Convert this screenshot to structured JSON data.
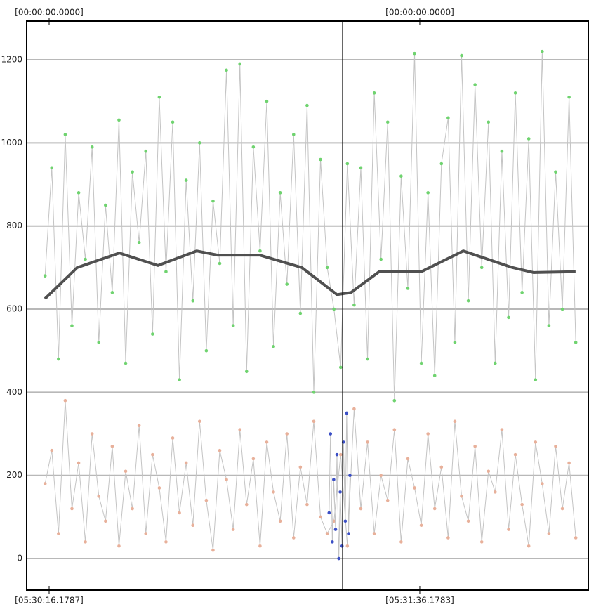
{
  "chart_data": {
    "type": "line",
    "ylim": [
      -76,
      1293
    ],
    "yticks": [
      0,
      200,
      400,
      600,
      800,
      1000,
      1200
    ],
    "xlim": [
      11.33,
      132.7
    ],
    "xticks": [
      {
        "value": 16.1787,
        "label": "[05:30:16.1787]"
      },
      {
        "value": 96.1783,
        "label": "[05:31:36.1783]"
      }
    ],
    "top_labels": [
      "[00:00:00.0000]",
      "[00:00:00.0000]"
    ],
    "cursor_x": 79.51,
    "grid": true,
    "x": [
      15.3,
      16.75,
      18.2,
      19.65,
      21.1,
      22.55,
      24,
      25.45,
      26.9,
      28.35,
      29.8,
      31.25,
      32.7,
      34.15,
      35.6,
      37.05,
      38.5,
      39.95,
      41.4,
      42.85,
      44.3,
      45.75,
      47.2,
      48.65,
      50.1,
      51.55,
      53,
      54.45,
      55.9,
      57.35,
      58.8,
      60.25,
      61.7,
      63.15,
      64.6,
      66.05,
      67.5,
      68.95,
      70.4,
      71.85,
      73.3,
      74.75,
      76.2,
      77.65,
      79.1,
      80.55,
      82,
      83.45,
      84.9,
      86.35,
      87.8,
      89.25,
      90.7,
      92.15,
      93.6,
      95.05,
      96.5,
      97.95,
      99.4,
      100.85,
      102.3,
      103.75,
      105.2,
      106.65,
      108.1,
      109.55,
      111,
      112.45,
      113.9,
      115.35,
      116.8,
      118.25,
      119.7,
      121.15,
      122.6,
      124.05,
      125.5,
      126.95,
      128.4,
      129.85
    ],
    "series": [
      {
        "color": "#6fd36f",
        "line_color": "#c4c4c4",
        "marker": true,
        "values": [
          680,
          940,
          480,
          1020,
          560,
          880,
          720,
          990,
          520,
          850,
          640,
          1055,
          470,
          930,
          760,
          980,
          540,
          1110,
          690,
          1050,
          430,
          910,
          620,
          1000,
          500,
          860,
          710,
          1175,
          560,
          1190,
          450,
          990,
          740,
          1100,
          510,
          880,
          660,
          1020,
          590,
          1090,
          400,
          960,
          700,
          600,
          460,
          950,
          610,
          940,
          480,
          1120,
          720,
          1050,
          380,
          920,
          650,
          1215,
          470,
          880,
          440,
          950,
          1060,
          520,
          1210,
          620,
          1140,
          700,
          1050,
          470,
          980,
          580,
          1120,
          640,
          1010,
          430,
          1220,
          560,
          930,
          600,
          1110,
          520
        ]
      },
      {
        "color": "#e8b09a",
        "line_color": "#c4c4c4",
        "marker": true,
        "values": [
          180,
          260,
          60,
          380,
          120,
          230,
          40,
          300,
          150,
          90,
          270,
          30,
          210,
          120,
          320,
          60,
          250,
          170,
          40,
          290,
          110,
          230,
          80,
          330,
          140,
          20,
          260,
          190,
          70,
          310,
          130,
          240,
          30,
          280,
          160,
          90,
          300,
          50,
          220,
          130,
          330,
          100,
          60,
          90,
          250,
          30,
          360,
          120,
          280,
          60,
          200,
          140,
          310,
          40,
          240,
          170,
          80,
          300,
          120,
          220,
          50,
          330,
          150,
          90,
          270,
          40,
          210,
          160,
          310,
          70,
          250,
          130,
          30,
          280,
          180,
          60,
          270,
          120,
          230,
          50
        ]
      },
      {
        "color": "#3b4fc6",
        "line_color": "#c4c4c4",
        "marker": true,
        "x": [
          76.6,
          76.9,
          77.3,
          77.6,
          78,
          78.3,
          78.7,
          79,
          79.4,
          79.7,
          80.1,
          80.4,
          80.8,
          81.1
        ],
        "values": [
          110,
          300,
          40,
          190,
          70,
          250,
          0,
          160,
          30,
          280,
          90,
          350,
          60,
          200
        ]
      },
      {
        "color": "#505050",
        "line_color": "#505050",
        "marker": false,
        "width": 4,
        "x": [
          15.27,
          22.24,
          31.33,
          39.66,
          48,
          52.54,
          61.63,
          70.73,
          78.3,
          81.33,
          87.4,
          96.48,
          105.57,
          116.18,
          120.73,
          129.8
        ],
        "values": [
          625,
          700,
          735,
          705,
          740,
          730,
          730,
          700,
          635,
          640,
          690,
          690,
          740,
          700,
          688,
          690
        ]
      }
    ]
  }
}
